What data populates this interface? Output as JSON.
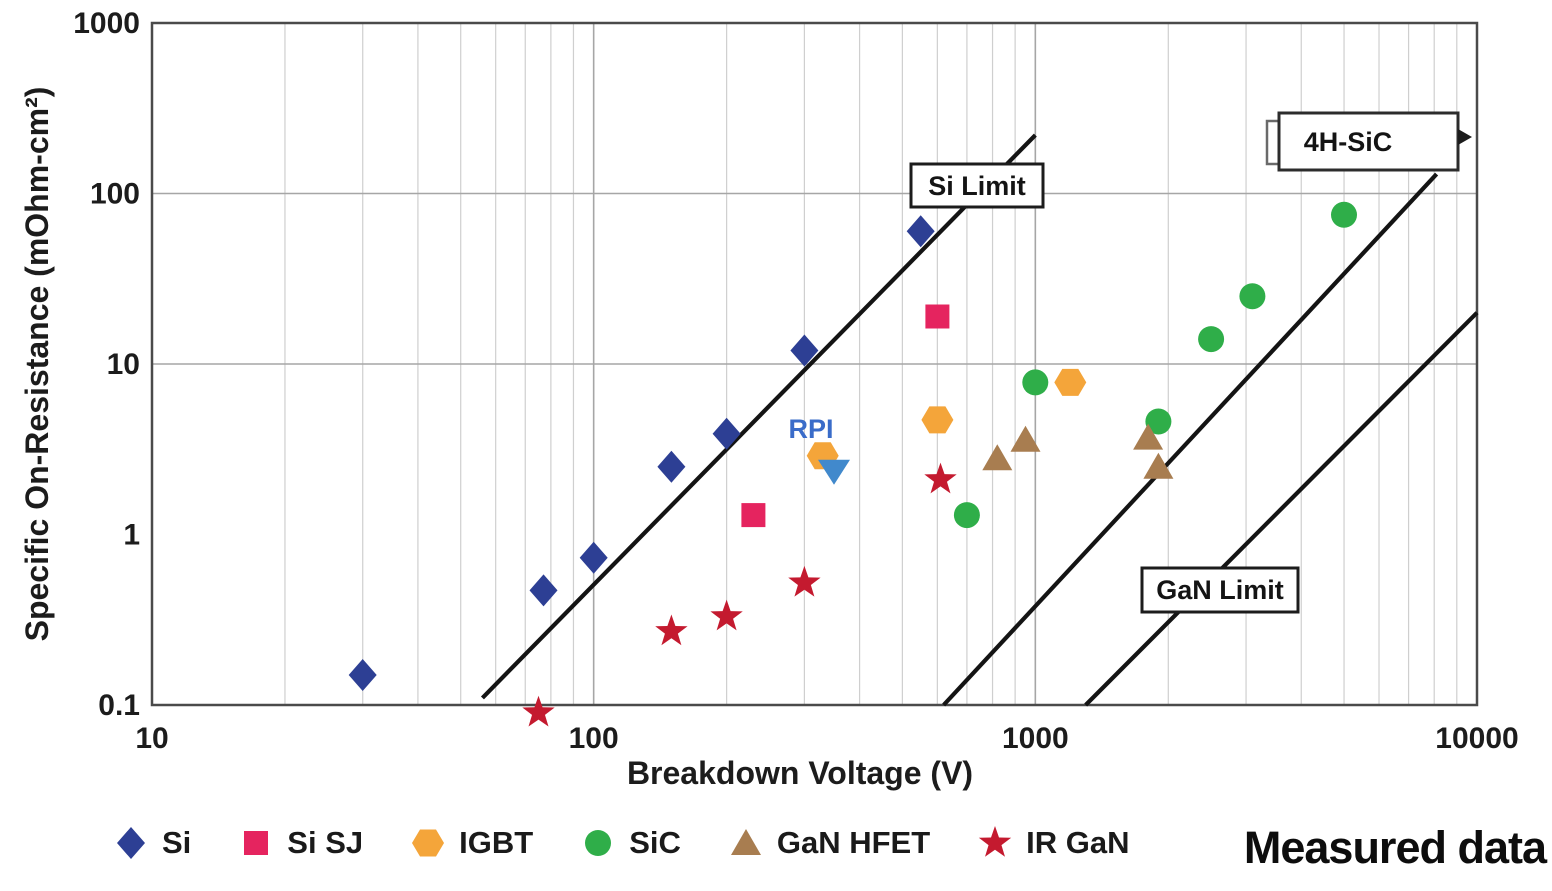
{
  "chart_data": {
    "type": "scatter",
    "xlabel": "Breakdown Voltage (V)",
    "ylabel": "Specific On-Resistance (mOhm-cm²)",
    "x_scale": "log",
    "y_scale": "log",
    "xlim": [
      10,
      10000
    ],
    "ylim": [
      0.1,
      1000
    ],
    "x_ticks": [
      10,
      100,
      1000,
      10000
    ],
    "x_tick_labels": [
      "10",
      "100",
      "1000",
      "10000"
    ],
    "y_ticks": [
      1000,
      100,
      10,
      1,
      0.1
    ],
    "y_tick_labels": [
      "1000",
      "100",
      "10",
      "1",
      "0.1"
    ],
    "grid": {
      "minor_color": "#cfcfcf",
      "major_color": "#a6a6a6",
      "h_major_lines": [
        100,
        10
      ],
      "v_major_lines": [
        100,
        1000
      ]
    },
    "series": [
      {
        "name": "Si",
        "marker": "diamond",
        "color": "#2d3f94",
        "points": [
          [
            30,
            0.15
          ],
          [
            77,
            0.47
          ],
          [
            100,
            0.73
          ],
          [
            150,
            2.5
          ],
          [
            200,
            3.9
          ],
          [
            300,
            12
          ],
          [
            550,
            60
          ]
        ]
      },
      {
        "name": "Si SJ",
        "marker": "square",
        "color": "#e5245f",
        "points": [
          [
            230,
            1.3
          ],
          [
            600,
            19
          ]
        ]
      },
      {
        "name": "IGBT",
        "marker": "hexagon",
        "color": "#f4a53a",
        "points": [
          [
            330,
            2.9
          ],
          [
            600,
            4.7
          ],
          [
            1200,
            7.8
          ]
        ]
      },
      {
        "name": "SiC",
        "marker": "circle",
        "color": "#2fae49",
        "points": [
          [
            700,
            1.3
          ],
          [
            1000,
            7.8
          ],
          [
            1900,
            4.6
          ],
          [
            2500,
            14
          ],
          [
            3100,
            25
          ],
          [
            5000,
            75
          ]
        ]
      },
      {
        "name": "GaN HFET",
        "marker": "triangle-up",
        "color": "#a87d50",
        "points": [
          [
            820,
            2.8
          ],
          [
            950,
            3.6
          ],
          [
            1800,
            3.7
          ],
          [
            1900,
            2.5
          ]
        ]
      },
      {
        "name": "IR GaN",
        "marker": "star",
        "color": "#c41a2f",
        "points": [
          [
            75,
            0.09
          ],
          [
            150,
            0.27
          ],
          [
            200,
            0.33
          ],
          [
            300,
            0.52
          ],
          [
            610,
            2.1
          ]
        ]
      }
    ],
    "rpi": {
      "name": "RPI",
      "marker": "triangle-down",
      "color": "#4189cc",
      "label_color": "#3a6cc9",
      "points": [
        [
          350,
          2.4
        ]
      ]
    },
    "lines": [
      {
        "name": "Si Limit",
        "color": "#141414",
        "from": [
          56,
          0.11
        ],
        "to": [
          1000,
          220
        ]
      },
      {
        "name": "4H-SiC",
        "color": "#141414",
        "from": [
          620,
          0.1
        ],
        "to": [
          8100,
          130
        ]
      },
      {
        "name": "GaN Limit",
        "color": "#141414",
        "from": [
          1300,
          0.1
        ],
        "to": [
          10000,
          20
        ]
      }
    ],
    "footer_note": "Measured data"
  },
  "legend": {
    "items": [
      {
        "label": "Si"
      },
      {
        "label": "Si SJ"
      },
      {
        "label": "IGBT"
      },
      {
        "label": "SiC"
      },
      {
        "label": "GaN HFET"
      },
      {
        "label": "IR GaN"
      }
    ]
  }
}
